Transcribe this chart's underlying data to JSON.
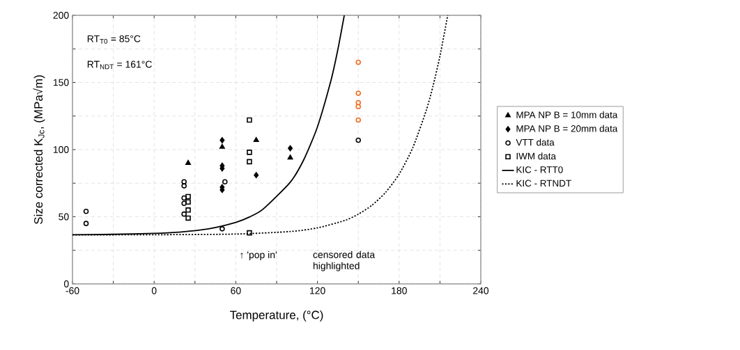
{
  "chart_data": {
    "type": "scatter",
    "xlabel": "Temperature, (°C)",
    "ylabel": "Size corrected K$_{Jc}$, (MPa√m)",
    "xlim": [
      -60,
      240
    ],
    "ylim": [
      0,
      200
    ],
    "xticks": [
      -60,
      {
        "value": -30,
        "label": null
      },
      0,
      {
        "value": 30,
        "label": null
      },
      60,
      {
        "value": 90,
        "label": null
      },
      120,
      {
        "value": 150,
        "label": null
      },
      180,
      {
        "value": 210,
        "label": null
      },
      240
    ],
    "yticks": [
      0,
      {
        "value": 25,
        "label": null
      },
      50,
      {
        "value": 75,
        "label": null
      },
      100,
      {
        "value": 125,
        "label": null
      },
      150,
      {
        "value": 175,
        "label": null
      },
      200
    ],
    "grid": true,
    "legend": "right",
    "series": [
      {
        "name": "MPA NP B = 10mm data",
        "color": "#000000",
        "marker": "triangle",
        "x": [
          25,
          50,
          75,
          100
        ],
        "values": [
          90,
          102,
          107,
          94
        ]
      },
      {
        "name": "MPA NP B = 20mm data",
        "color": "#000000",
        "marker": "diamond",
        "x": [
          50,
          50,
          50,
          50,
          50,
          75,
          100
        ],
        "values": [
          107,
          88,
          86,
          72,
          70,
          81,
          101
        ]
      },
      {
        "name": "VTT data",
        "color": "#000000",
        "marker": "circle",
        "x": [
          -50,
          -50,
          22,
          22,
          22,
          22,
          22,
          52,
          50,
          150
        ],
        "values": [
          54,
          45,
          76,
          73,
          64,
          60,
          52,
          76,
          41,
          107
        ]
      },
      {
        "name": "IWM data",
        "color": "#000000",
        "marker": "square",
        "x": [
          25,
          25,
          25,
          25,
          70,
          70,
          70,
          70
        ],
        "values": [
          65,
          61,
          55,
          49,
          122,
          98,
          91,
          38
        ]
      },
      {
        "color": "#f26b1d",
        "marker": "circle",
        "x": [
          150,
          150,
          150,
          150,
          150
        ],
        "values": [
          165,
          142,
          135,
          132,
          122
        ]
      },
      {
        "name": "KIC - RTT0",
        "type": "line",
        "color": "#000000",
        "marker": "none",
        "line_style": "solid",
        "x": [
          -60,
          -30,
          0,
          20,
          40,
          60,
          70,
          80,
          100,
          110,
          120,
          130,
          135,
          139.7
        ],
        "values": [
          36.6,
          36.9,
          37.6,
          38.7,
          41.0,
          45.8,
          49.8,
          55.6,
          75.7,
          92.6,
          117.0,
          151.8,
          174.6,
          200
        ]
      },
      {
        "name": "KIC - RTNDT",
        "type": "line",
        "color": "#000000",
        "marker": "none",
        "line_style": "dotted",
        "x": [
          -60,
          0,
          60,
          100,
          120,
          140,
          150,
          160,
          170,
          180,
          190,
          200,
          205,
          210,
          215.7
        ],
        "values": [
          36.5,
          36.6,
          37.1,
          39.0,
          41.7,
          47.2,
          51.9,
          58.5,
          68.1,
          81.7,
          101.3,
          129.4,
          147.7,
          169.7,
          200
        ]
      }
    ],
    "annotations": [
      "RT$_{T0}$ = 85°C",
      "RT$_{NDT}$ = 161°C",
      "↑ 'pop in'",
      "censored data highlighted"
    ]
  }
}
